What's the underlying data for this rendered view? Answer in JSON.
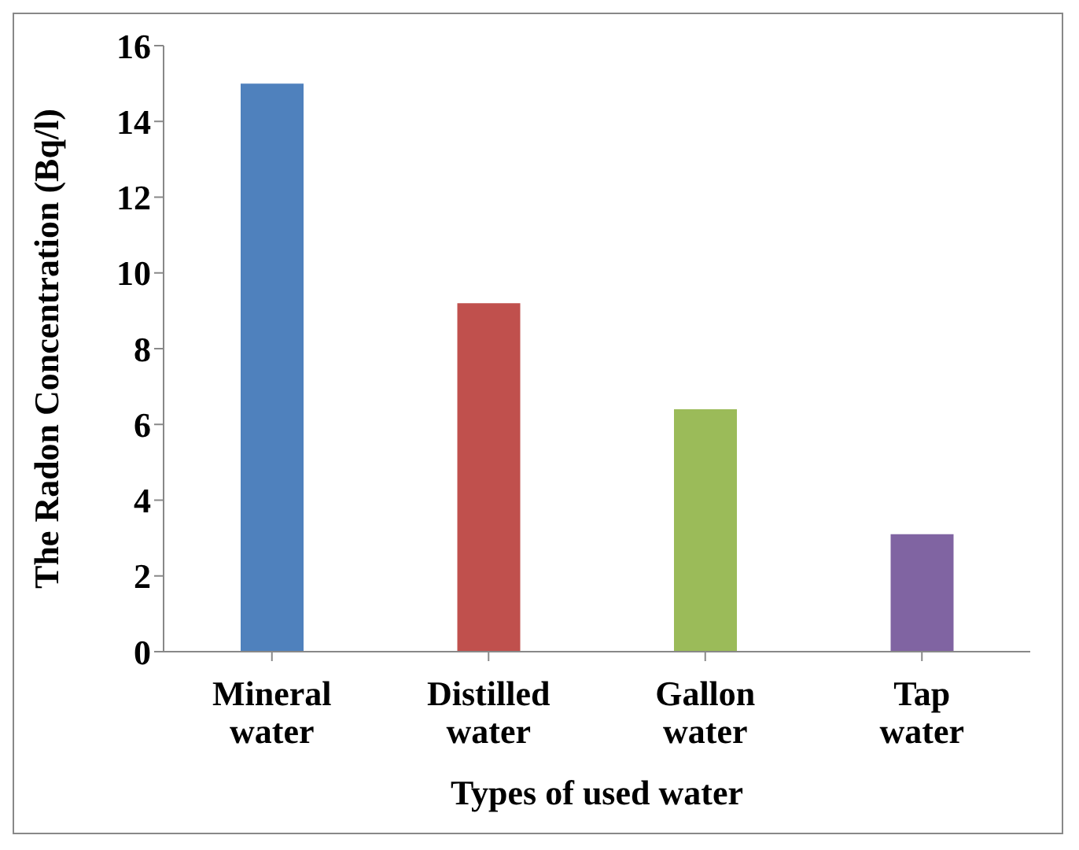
{
  "chart_data": {
    "type": "bar",
    "xlabel": "Types of used water",
    "ylabel": "The Radon Concentration (Bq/l)",
    "categories": [
      "Mineral water",
      "Distilled water",
      "Gallon water",
      "Tap water"
    ],
    "values": [
      15,
      9.2,
      6.4,
      3.1
    ],
    "colors": [
      "#4f81bd",
      "#c0504d",
      "#9bbb59",
      "#8064a2"
    ],
    "ylim": [
      0,
      16
    ],
    "yticks": [
      0,
      2,
      4,
      6,
      8,
      10,
      12,
      14,
      16
    ],
    "grid": false,
    "legend": false
  }
}
